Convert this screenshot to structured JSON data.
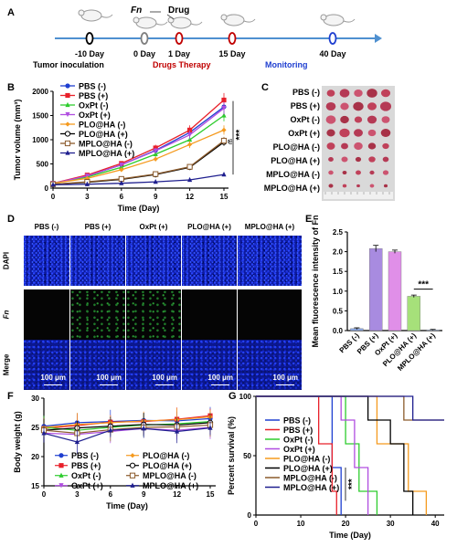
{
  "panels": {
    "A": "A",
    "B": "B",
    "C": "C",
    "D": "D",
    "E": "E",
    "F": "F",
    "G": "G"
  },
  "timeline": {
    "fn_label": "Fn",
    "drug_label": "Drug",
    "days": [
      "-10 Day",
      "0 Day",
      "1 Day",
      "15 Day",
      "40 Day"
    ],
    "day_colors": [
      "#000000",
      "#7f7f7f",
      "#c00000",
      "#c00000",
      "#1f3fd0"
    ],
    "tumor_label": "Tumor  inoculation",
    "drugs_label": "Drugs  Therapy",
    "monitor_label": "Monitoring",
    "line_color": "#4f90d0"
  },
  "series_colors": {
    "PBS (-)": "#1f3fd0",
    "PBS (+)": "#e8202a",
    "OxPt (-)": "#2ecc2e",
    "OxPt (+)": "#b04de0",
    "PLO@HA (-)": "#f59a1e",
    "PLO@HA (+)": "#000000",
    "MPLO@HA (-)": "#8b5a2b",
    "MPLO@HA (+)": "#1f1f8f"
  },
  "chart_data": [
    {
      "panel": "B",
      "type": "line",
      "xlabel": "Time (Day)",
      "ylabel": "Tumor volume (mm³)",
      "x": [
        0,
        3,
        6,
        9,
        12,
        15
      ],
      "xlim": [
        0,
        15
      ],
      "ylim": [
        0,
        2000
      ],
      "yticks": [
        0,
        500,
        1000,
        1500,
        2000
      ],
      "series": [
        {
          "name": "PBS (-)",
          "values": [
            100,
            250,
            480,
            780,
            1150,
            1680
          ]
        },
        {
          "name": "PBS (+)",
          "values": [
            100,
            270,
            510,
            830,
            1200,
            1820
          ]
        },
        {
          "name": "OxPt (-)",
          "values": [
            100,
            230,
            430,
            700,
            1000,
            1500
          ]
        },
        {
          "name": "OxPt (+)",
          "values": [
            100,
            250,
            480,
            770,
            1100,
            1650
          ]
        },
        {
          "name": "PLO@HA (-)",
          "values": [
            100,
            200,
            380,
            600,
            900,
            1200
          ]
        },
        {
          "name": "PLO@HA (+)",
          "values": [
            80,
            120,
            180,
            280,
            430,
            950
          ]
        },
        {
          "name": "MPLO@HA (-)",
          "values": [
            80,
            130,
            190,
            290,
            440,
            980
          ]
        },
        {
          "name": "MPLO@HA (+)",
          "values": [
            70,
            80,
            100,
            130,
            170,
            280
          ]
        }
      ],
      "annotations": [
        "***",
        "ns"
      ]
    },
    {
      "panel": "E",
      "type": "bar",
      "ylabel": "Mean fluorescence intensity of Fn",
      "categories": [
        "PBS (-)",
        "PBS (+)",
        "OxPt (+)",
        "PLO@HA (+)",
        "MPLO@HA (+)"
      ],
      "values": [
        0.05,
        2.08,
        2.0,
        0.87,
        0.02
      ],
      "errors": [
        0.02,
        0.08,
        0.04,
        0.03,
        0.01
      ],
      "colors": [
        "#8aa9e6",
        "#a88be0",
        "#e08fe8",
        "#a6e07a",
        "#aac4f0"
      ],
      "ylim": [
        0,
        2.5
      ],
      "yticks": [
        "0.0",
        "0.5",
        "1.0",
        "1.5",
        "2.0",
        "2.5"
      ],
      "annotations": [
        "***"
      ]
    },
    {
      "panel": "F",
      "type": "line",
      "xlabel": "Time (Day)",
      "ylabel": "Body weight (g)",
      "x": [
        0,
        3,
        6,
        9,
        12,
        15
      ],
      "xlim": [
        0,
        15
      ],
      "ylim": [
        15,
        30
      ],
      "yticks": [
        15,
        20,
        25,
        30
      ],
      "series": [
        {
          "name": "PBS (-)",
          "values": [
            25.2,
            25.8,
            26.0,
            26.2,
            26.1,
            26.5
          ]
        },
        {
          "name": "PBS (+)",
          "values": [
            24.8,
            25.3,
            25.9,
            26.0,
            26.4,
            27.0
          ]
        },
        {
          "name": "OxPt (-)",
          "values": [
            25.0,
            24.5,
            25.0,
            25.4,
            25.6,
            26.0
          ]
        },
        {
          "name": "OxPt (+)",
          "values": [
            24.0,
            23.8,
            24.3,
            24.8,
            24.5,
            25.0
          ]
        },
        {
          "name": "PLO@HA (-)",
          "values": [
            25.0,
            25.5,
            25.8,
            26.1,
            26.3,
            26.8
          ]
        },
        {
          "name": "PLO@HA (+)",
          "values": [
            24.5,
            24.9,
            25.2,
            25.5,
            25.4,
            25.8
          ]
        },
        {
          "name": "MPLO@HA (-)",
          "values": [
            24.5,
            24.0,
            24.6,
            25.0,
            25.1,
            25.4
          ]
        },
        {
          "name": "MPLO@HA (+)",
          "values": [
            24.0,
            22.5,
            24.5,
            24.8,
            24.3,
            24.9
          ]
        }
      ]
    },
    {
      "panel": "G",
      "type": "line",
      "xlabel": "Time (Day)",
      "ylabel": "Percent survival (%)",
      "xlim": [
        0,
        42
      ],
      "xticks": [
        0,
        10,
        20,
        30,
        40
      ],
      "ylim": [
        0,
        100
      ],
      "yticks": [
        0,
        50,
        100
      ],
      "series": [
        {
          "name": "PBS (-)",
          "steps": [
            [
              0,
              100
            ],
            [
              17,
              100
            ],
            [
              17,
              40
            ],
            [
              19,
              40
            ],
            [
              19,
              0
            ]
          ]
        },
        {
          "name": "PBS (+)",
          "steps": [
            [
              0,
              100
            ],
            [
              14,
              100
            ],
            [
              14,
              60
            ],
            [
              17,
              60
            ],
            [
              17,
              20
            ],
            [
              18,
              20
            ],
            [
              18,
              0
            ]
          ]
        },
        {
          "name": "OxPt (-)",
          "steps": [
            [
              0,
              100
            ],
            [
              20,
              100
            ],
            [
              20,
              60
            ],
            [
              23,
              60
            ],
            [
              23,
              20
            ],
            [
              27,
              20
            ],
            [
              27,
              0
            ]
          ]
        },
        {
          "name": "OxPt (+)",
          "steps": [
            [
              0,
              100
            ],
            [
              19,
              100
            ],
            [
              19,
              80
            ],
            [
              22,
              80
            ],
            [
              22,
              40
            ],
            [
              25,
              40
            ],
            [
              25,
              0
            ]
          ]
        },
        {
          "name": "PLO@HA (-)",
          "steps": [
            [
              0,
              100
            ],
            [
              27,
              100
            ],
            [
              27,
              60
            ],
            [
              34,
              60
            ],
            [
              34,
              20
            ],
            [
              38,
              20
            ],
            [
              38,
              0
            ]
          ]
        },
        {
          "name": "PLO@HA (+)",
          "steps": [
            [
              0,
              100
            ],
            [
              25,
              100
            ],
            [
              25,
              80
            ],
            [
              30,
              80
            ],
            [
              30,
              60
            ],
            [
              33,
              60
            ],
            [
              33,
              20
            ],
            [
              35,
              20
            ],
            [
              35,
              0
            ]
          ]
        },
        {
          "name": "MPLO@HA (-)",
          "steps": [
            [
              0,
              100
            ],
            [
              33,
              100
            ],
            [
              33,
              80
            ],
            [
              42,
              80
            ]
          ]
        },
        {
          "name": "MPLO@HA (+)",
          "steps": [
            [
              0,
              100
            ],
            [
              35,
              100
            ],
            [
              35,
              80
            ],
            [
              42,
              80
            ]
          ]
        }
      ],
      "annotations": [
        "***"
      ]
    }
  ],
  "photo_labels": [
    "PBS (-)",
    "PBS (+)",
    "OxPt (-)",
    "OxPt (+)",
    "PLO@HA (-)",
    "PLO@HA (+)",
    "MPLO@HA (-)",
    "MPLO@HA (+)"
  ],
  "micro": {
    "columns": [
      "PBS (-)",
      "PBS (+)",
      "OxPt (+)",
      "PLO@HA (+)",
      "MPLO@HA (+)"
    ],
    "rows": [
      "DAPI",
      "Fn",
      "Merge"
    ],
    "scale_label": "100 μm"
  }
}
